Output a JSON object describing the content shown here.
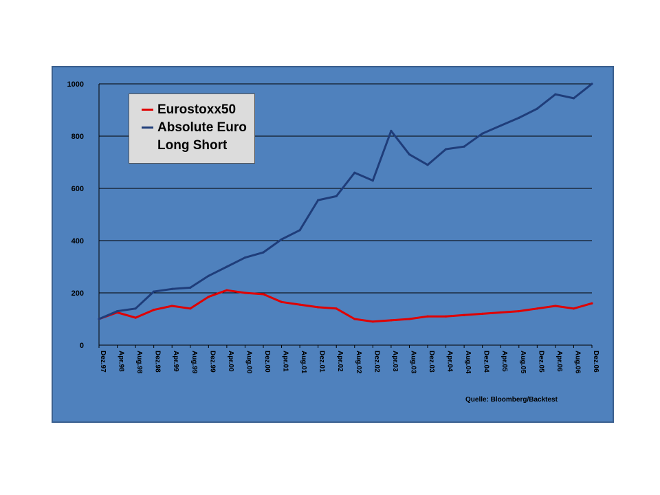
{
  "chart_data": {
    "type": "line",
    "ylim": [
      0,
      1000
    ],
    "yticks": [
      "0",
      "200",
      "400",
      "600",
      "800",
      "1000"
    ],
    "grid": true,
    "legend_placement": "top-left",
    "categories": [
      "Dez.97",
      "Apr.98",
      "Aug.98",
      "Dez.98",
      "Apr.99",
      "Aug.99",
      "Dez.99",
      "Apr.00",
      "Aug.00",
      "Dez.00",
      "Apr.01",
      "Aug.01",
      "Dez.01",
      "Apr.02",
      "Aug.02",
      "Dez.02",
      "Apr.03",
      "Aug.03",
      "Dez.03",
      "Apr.04",
      "Aug.04",
      "Dez.04",
      "Apr.05",
      "Aug.05",
      "Dez.05",
      "Apr.06",
      "Aug.06",
      "Dez.06"
    ],
    "series": [
      {
        "name": "Eurostoxx50",
        "color": "#e00000",
        "values": [
          100,
          125,
          105,
          135,
          150,
          140,
          185,
          210,
          200,
          195,
          165,
          155,
          145,
          140,
          100,
          90,
          95,
          100,
          110,
          110,
          115,
          120,
          125,
          130,
          140,
          150,
          140,
          160
        ]
      },
      {
        "name": "Absolute Euro Long Short",
        "color": "#1f3d7a",
        "values": [
          100,
          130,
          140,
          205,
          215,
          220,
          265,
          300,
          335,
          355,
          405,
          440,
          555,
          570,
          660,
          630,
          820,
          730,
          690,
          750,
          760,
          810,
          840,
          870,
          905,
          960,
          945,
          1000
        ]
      }
    ]
  },
  "legend": {
    "items": [
      {
        "label": "Eurostoxx50",
        "color": "#e00000"
      },
      {
        "label": "Absolute Euro Long Short",
        "color": "#1f3d7a"
      }
    ]
  },
  "source_note": "Quelle: Bloomberg/Backtest",
  "colors": {
    "background": "#4f81bd",
    "frame_border": "#3a5f8e",
    "legend_bg": "#dcdcdc"
  }
}
